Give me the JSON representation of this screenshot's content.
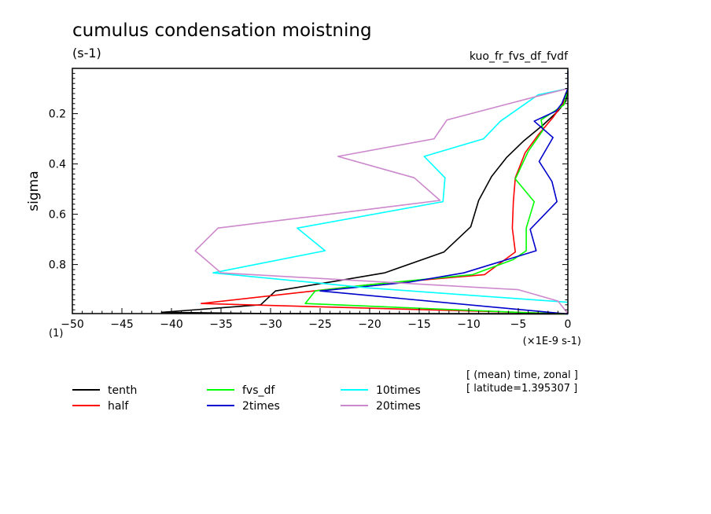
{
  "chart_data": {
    "type": "line",
    "title": "cumulus condensation moistning",
    "units": "(s-1)",
    "experiment": "kuo_fr_fvs_df_fvdf",
    "ylabel": "sigma",
    "xlabel": "(×1E-9 s-1)",
    "corner_label": "(1)",
    "xlim": [
      -50,
      0
    ],
    "ylim": [
      0.02,
      0.995
    ],
    "y_inverted": true,
    "x_ticks": [
      -50,
      -45,
      -40,
      -35,
      -30,
      -25,
      -20,
      -15,
      -10,
      -5,
      0
    ],
    "x_tick_labels": [
      "−50",
      "−45",
      "−40",
      "−35",
      "−30",
      "−25",
      "−20",
      "−15",
      "−10",
      "−5",
      "0"
    ],
    "y_ticks": [
      0.2,
      0.4,
      0.6,
      0.8
    ],
    "y_tick_labels": [
      "0.2",
      "0.4",
      "0.6",
      "0.8"
    ],
    "info": [
      "[ (mean) time, zonal ]",
      "[ latitude=1.395307 ]"
    ],
    "series": [
      {
        "name": "tenth",
        "color": "#000000",
        "points": [
          [
            0,
            0.03
          ],
          [
            0,
            0.1
          ],
          [
            -0.2,
            0.15
          ],
          [
            -1,
            0.19
          ],
          [
            -2.5,
            0.245
          ],
          [
            -4.5,
            0.31
          ],
          [
            -6.2,
            0.375
          ],
          [
            -7.7,
            0.45
          ],
          [
            -9,
            0.545
          ],
          [
            -9.8,
            0.65
          ],
          [
            -12.5,
            0.75
          ],
          [
            -18.5,
            0.833
          ],
          [
            -23,
            0.863
          ],
          [
            -29.5,
            0.905
          ],
          [
            -31,
            0.96
          ],
          [
            -41,
            0.99
          ],
          [
            -30,
            0.995
          ],
          [
            0,
            0.997
          ]
        ]
      },
      {
        "name": "half",
        "color": "#ff0000",
        "points": [
          [
            0,
            0.03
          ],
          [
            0,
            0.1
          ],
          [
            -0.5,
            0.16
          ],
          [
            -1.5,
            0.215
          ],
          [
            -3,
            0.285
          ],
          [
            -4.3,
            0.355
          ],
          [
            -5.3,
            0.455
          ],
          [
            -5.5,
            0.55
          ],
          [
            -5.6,
            0.655
          ],
          [
            -5.3,
            0.75
          ],
          [
            -8.4,
            0.84
          ],
          [
            -20,
            0.88
          ],
          [
            -37,
            0.955
          ],
          [
            -5,
            0.99
          ],
          [
            0,
            0.997
          ]
        ]
      },
      {
        "name": "fvs_df",
        "color": "#00ff00",
        "points": [
          [
            0,
            0.03
          ],
          [
            0,
            0.1
          ],
          [
            -0.4,
            0.165
          ],
          [
            -2.7,
            0.225
          ],
          [
            -2.5,
            0.265
          ],
          [
            -4,
            0.35
          ],
          [
            -5.3,
            0.46
          ],
          [
            -3.4,
            0.55
          ],
          [
            -4.2,
            0.655
          ],
          [
            -4.2,
            0.745
          ],
          [
            -5.5,
            0.78
          ],
          [
            -9.6,
            0.84
          ],
          [
            -20,
            0.88
          ],
          [
            -25.5,
            0.905
          ],
          [
            -26.5,
            0.955
          ],
          [
            -5,
            0.99
          ],
          [
            0,
            0.997
          ]
        ]
      },
      {
        "name": "2times",
        "color": "#0000cc",
        "points": [
          [
            0,
            0.03
          ],
          [
            0,
            0.1
          ],
          [
            -0.6,
            0.16
          ],
          [
            -1.2,
            0.19
          ],
          [
            -3.4,
            0.23
          ],
          [
            -1.5,
            0.295
          ],
          [
            -2.9,
            0.39
          ],
          [
            -1.6,
            0.47
          ],
          [
            -1.1,
            0.55
          ],
          [
            -3.8,
            0.66
          ],
          [
            -3.2,
            0.745
          ],
          [
            -10.5,
            0.833
          ],
          [
            -16,
            0.87
          ],
          [
            -25,
            0.905
          ],
          [
            0,
            0.997
          ]
        ]
      },
      {
        "name": "10times",
        "color": "#00ffff",
        "points": [
          [
            0,
            0.03
          ],
          [
            0,
            0.1
          ],
          [
            -3,
            0.125
          ],
          [
            -6.8,
            0.23
          ],
          [
            -8.5,
            0.3
          ],
          [
            -14.5,
            0.37
          ],
          [
            -12.4,
            0.455
          ],
          [
            -12.6,
            0.55
          ],
          [
            -27.3,
            0.655
          ],
          [
            -24.5,
            0.745
          ],
          [
            -35.8,
            0.833
          ],
          [
            -20,
            0.893
          ],
          [
            0,
            0.95
          ]
        ]
      },
      {
        "name": "20times",
        "color": "#cc88cc",
        "points": [
          [
            0,
            0.03
          ],
          [
            0,
            0.1
          ],
          [
            -3,
            0.13
          ],
          [
            -12.2,
            0.225
          ],
          [
            -13.5,
            0.3
          ],
          [
            -23.2,
            0.37
          ],
          [
            -15.5,
            0.455
          ],
          [
            -12.9,
            0.545
          ],
          [
            -35.3,
            0.655
          ],
          [
            -37.6,
            0.745
          ],
          [
            -35,
            0.833
          ],
          [
            -5,
            0.9
          ],
          [
            -1,
            0.945
          ],
          [
            0,
            0.995
          ]
        ]
      }
    ]
  }
}
